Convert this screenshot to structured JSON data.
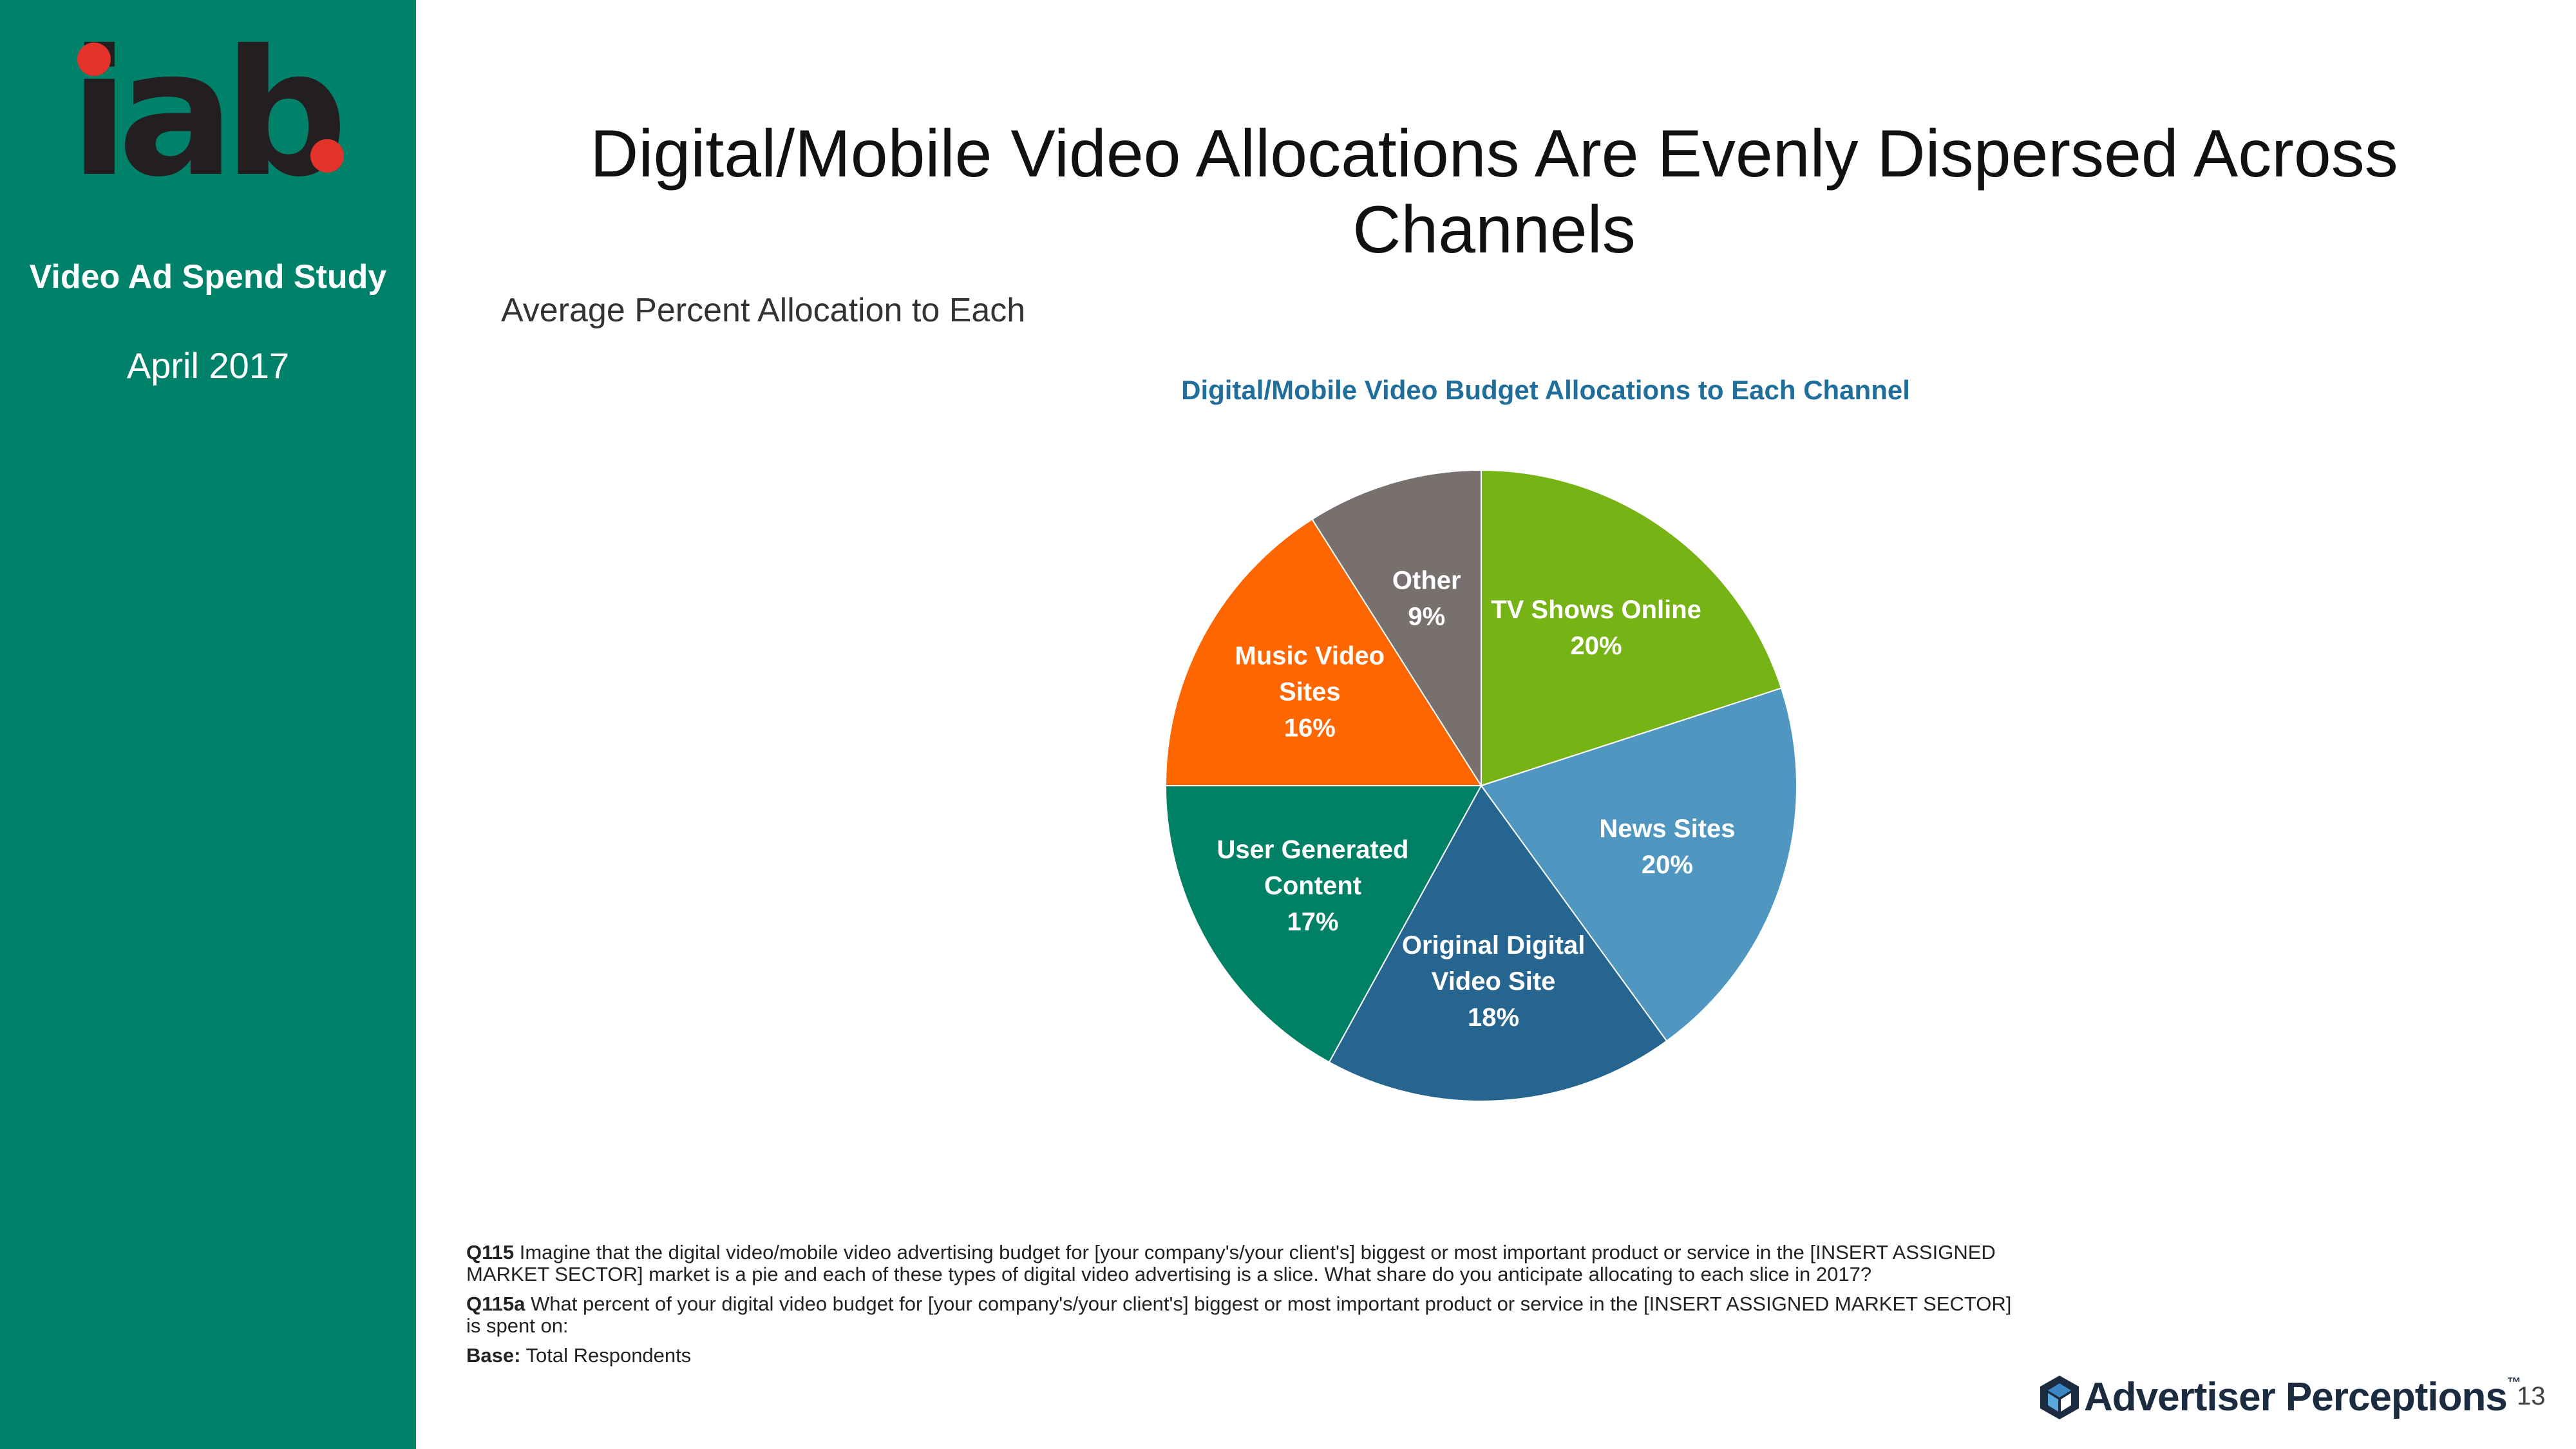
{
  "brand": {
    "logo_text": "iab",
    "study_title": "Video Ad Spend Study",
    "study_date": "April 2017",
    "colors": {
      "sidebar": "#00826A",
      "logo_dot": "#E2322A"
    }
  },
  "slide": {
    "title": "Digital/Mobile Video Allocations Are Evenly Dispersed Across\nChannels",
    "subtitle": "Average Percent Allocation to Each",
    "page_number": "13"
  },
  "chart_data": {
    "type": "pie",
    "title": "Digital/Mobile Video Budget Allocations to Each Channel",
    "slices": [
      {
        "label": "TV Shows Online",
        "value": 20,
        "display": "20%",
        "color": "#76B314"
      },
      {
        "label": "News Sites",
        "value": 20,
        "display": "20%",
        "color": "#4F97C0"
      },
      {
        "label": "Original Digital Video Site",
        "value": 18,
        "display": "18%",
        "color": "#266590"
      },
      {
        "label": "User Generated Content",
        "value": 17,
        "display": "17%",
        "color": "#008064"
      },
      {
        "label": "Music Video Sites",
        "value": 16,
        "display": "16%",
        "color": "#FF6600"
      },
      {
        "label": "Other",
        "value": 9,
        "display": "9%",
        "color": "#77706F"
      }
    ]
  },
  "footnotes": {
    "q115_label": "Q115",
    "q115_text": " Imagine that the digital video/mobile video advertising budget for [your company's/your client's] biggest or most important product or service in the [INSERT ASSIGNED MARKET SECTOR] market is a pie and each of these types of digital video advertising is a slice. What share do you anticipate allocating to each slice in 2017?",
    "q115a_label": "Q115a",
    "q115a_text": " What percent of your digital video budget for [your company's/your client's] biggest or most important product or service in the [INSERT ASSIGNED MARKET SECTOR] is spent on:",
    "base_label": "Base:",
    "base_text": " Total Respondents"
  },
  "footer": {
    "company": "Advertiser Perceptions",
    "trademark": "™"
  }
}
